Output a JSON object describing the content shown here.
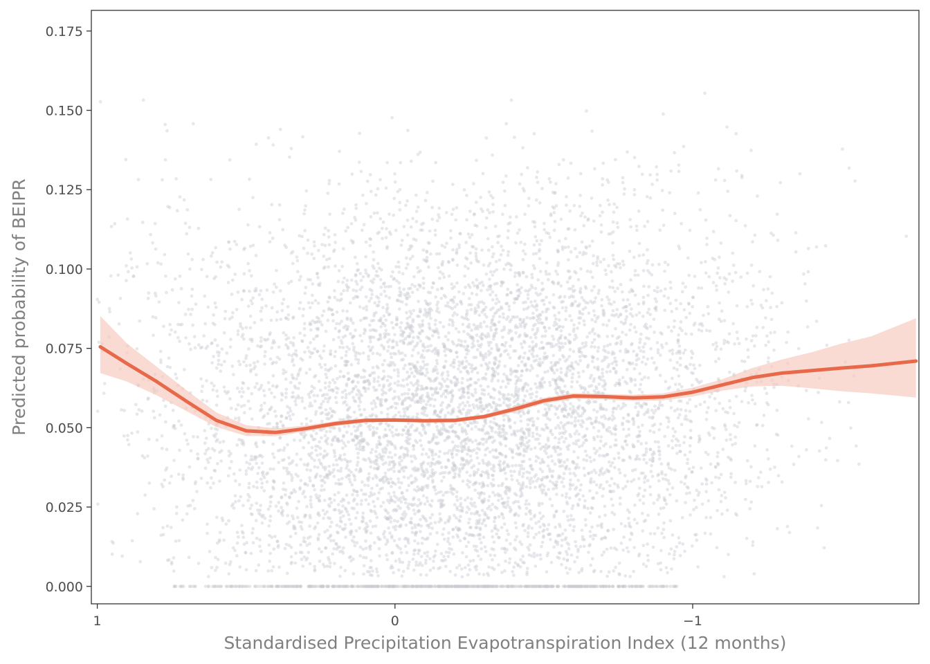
{
  "chart_data": {
    "type": "scatter",
    "title": "",
    "xlabel": "Standardised Precipitation Evapotranspiration Index (12 months)",
    "ylabel": "Predicted probability of BEIPR",
    "x_reversed": true,
    "xlim": [
      1.02,
      -1.76
    ],
    "ylim": [
      -0.0055,
      0.1815
    ],
    "x_ticks": [
      1,
      0,
      -1
    ],
    "x_tick_labels": [
      "1",
      "0",
      "−1"
    ],
    "y_ticks": [
      0,
      0.025,
      0.05,
      0.075,
      0.1,
      0.125,
      0.15,
      0.175
    ],
    "y_tick_labels": [
      "0.000",
      "0.025",
      "0.050",
      "0.075",
      "0.100",
      "0.125",
      "0.150",
      "0.175"
    ],
    "grid": false,
    "legend": "none",
    "colors": {
      "points": "#c9ccd3",
      "smooth_line": "#e8694a",
      "ribbon": "#f6c7bb",
      "frame": "#333333"
    },
    "scatter": {
      "description_points": "dense cloud of predicted probabilities, roughly x in [-1.75, 1.0], y in [0, 0.175], with many exact zeros between x = 0.75 and x = -0.95",
      "x_range": [
        -1.75,
        1.0
      ],
      "y_range": [
        0,
        0.175
      ]
    },
    "series": [
      {
        "type": "line",
        "x": [
          0.99,
          0.9,
          0.8,
          0.7,
          0.6,
          0.5,
          0.4,
          0.3,
          0.2,
          0.1,
          0.0,
          -0.1,
          -0.2,
          -0.3,
          -0.4,
          -0.5,
          -0.6,
          -0.7,
          -0.8,
          -0.9,
          -1.0,
          -1.1,
          -1.2,
          -1.3,
          -1.4,
          -1.5,
          -1.6,
          -1.75
        ],
        "y": [
          0.0755,
          0.0702,
          0.0645,
          0.0583,
          0.0523,
          0.049,
          0.0485,
          0.0497,
          0.0513,
          0.0523,
          0.0524,
          0.0522,
          0.0523,
          0.0535,
          0.0558,
          0.0585,
          0.06,
          0.0598,
          0.0594,
          0.0597,
          0.0612,
          0.0635,
          0.0658,
          0.0672,
          0.068,
          0.0688,
          0.0695,
          0.071
        ]
      },
      {
        "type": "ribbon",
        "x": [
          0.99,
          0.9,
          0.8,
          0.7,
          0.6,
          0.5,
          0.4,
          0.3,
          0.2,
          0.1,
          0.0,
          -0.1,
          -0.2,
          -0.3,
          -0.4,
          -0.5,
          -0.6,
          -0.7,
          -0.8,
          -0.9,
          -1.0,
          -1.1,
          -1.2,
          -1.3,
          -1.4,
          -1.5,
          -1.6,
          -1.75
        ],
        "ymin": [
          0.0672,
          0.0645,
          0.0602,
          0.0552,
          0.0502,
          0.0474,
          0.0473,
          0.0488,
          0.0505,
          0.0516,
          0.0518,
          0.0516,
          0.0516,
          0.0528,
          0.0549,
          0.0576,
          0.0591,
          0.0589,
          0.0584,
          0.0586,
          0.0598,
          0.0617,
          0.063,
          0.0632,
          0.0624,
          0.0615,
          0.0608,
          0.0595
        ],
        "ymax": [
          0.0852,
          0.0765,
          0.0692,
          0.0618,
          0.0548,
          0.0508,
          0.0498,
          0.0507,
          0.0521,
          0.053,
          0.053,
          0.0528,
          0.053,
          0.0542,
          0.0567,
          0.0594,
          0.0609,
          0.0607,
          0.0604,
          0.0608,
          0.0626,
          0.0653,
          0.0688,
          0.0715,
          0.0738,
          0.0765,
          0.0788,
          0.0845
        ]
      }
    ]
  }
}
